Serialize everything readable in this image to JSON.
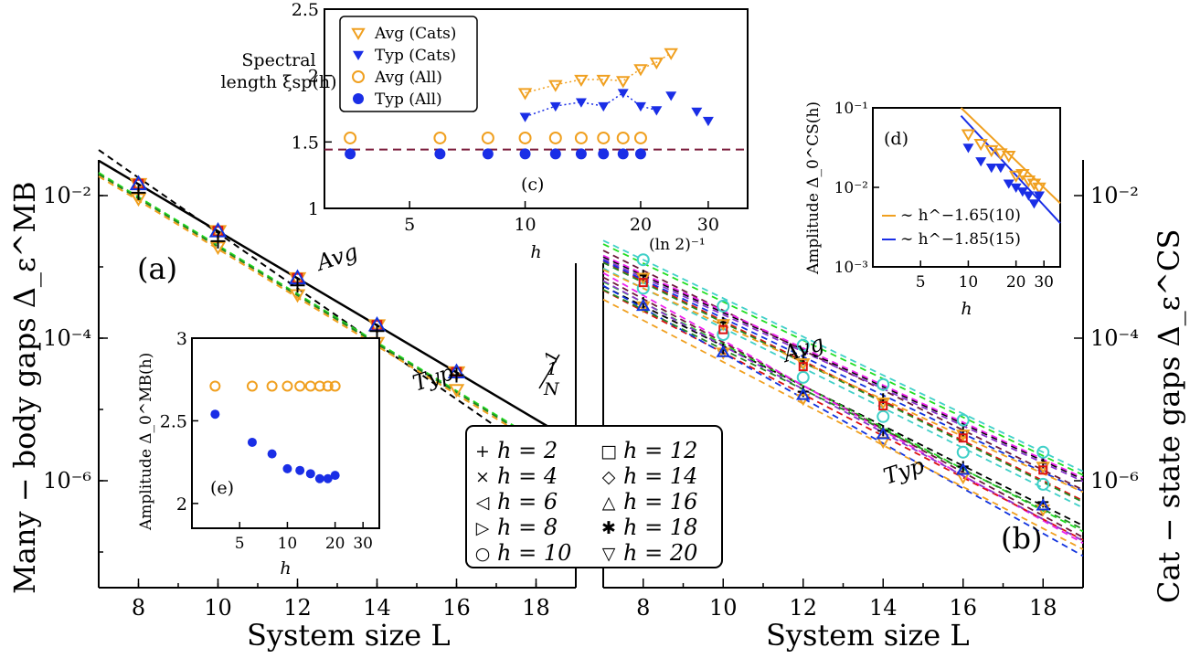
{
  "figure": {
    "label_a": "(a)",
    "label_b": "(b)",
    "label_c": "(c)",
    "label_d": "(d)",
    "label_e": "(e)",
    "avg_label": "Avg",
    "typ_label": "Typ",
    "sqrt_label_num": "1",
    "sqrt_label_den": "N",
    "ln2_label": "(ln 2)⁻¹",
    "fit_d_avg": "∼ h^−1.65(10)",
    "fit_d_typ": "∼ h^−1.85(15)"
  },
  "colors": {
    "h2": "#000000",
    "h4": "#22dd22",
    "h6": "#6b1a3a",
    "h8": "#ee22ee",
    "h10": "#40d0c8",
    "h12": "#dd1111",
    "h14": "#8833cc",
    "h16": "#1133dd",
    "h18": "#228822",
    "h20": "#f0a020",
    "orange": "#f0a020",
    "blue": "#1a2ee6",
    "maroon": "#7a1a3a"
  },
  "legend_main": [
    {
      "label": "h = 2",
      "key": "h2",
      "marker": "+"
    },
    {
      "label": "h = 4",
      "key": "h4",
      "marker": "×"
    },
    {
      "label": "h = 6",
      "key": "h6",
      "marker": "◁"
    },
    {
      "label": "h = 8",
      "key": "h8",
      "marker": "▷"
    },
    {
      "label": "h = 10",
      "key": "h10",
      "marker": "○"
    },
    {
      "label": "h = 12",
      "key": "h12",
      "marker": "□"
    },
    {
      "label": "h = 14",
      "key": "h14",
      "marker": "◇"
    },
    {
      "label": "h = 16",
      "key": "h16",
      "marker": "△"
    },
    {
      "label": "h = 18",
      "key": "h18",
      "marker": "✱"
    },
    {
      "label": "h = 20",
      "key": "h20",
      "marker": "▽"
    }
  ],
  "legend_c": [
    {
      "label": "Avg (Cats)",
      "marker": "▽",
      "color": "orange"
    },
    {
      "label": "Typ (Cats)",
      "marker": "▼",
      "color": "blue"
    },
    {
      "label": "Avg (All)",
      "marker": "○",
      "color": "orange"
    },
    {
      "label": "Typ (All)",
      "marker": "●",
      "color": "blue"
    }
  ],
  "chart_data": [
    {
      "id": "a",
      "type": "scatter",
      "title": "(a)",
      "xlabel": "System size L",
      "ylabel": "Many − body gaps Δ_ε^MB",
      "xlim": [
        7,
        19
      ],
      "ylim_log10": [
        -7.5,
        -1.5
      ],
      "yscale": "log",
      "xticks": [
        8,
        10,
        12,
        14,
        16,
        18
      ],
      "yticks_log10": [
        -6,
        -4,
        -2
      ],
      "yticklabels": [
        "10⁻⁶",
        "10⁻⁴",
        "10⁻²"
      ],
      "x": [
        8,
        10,
        12,
        14,
        16
      ],
      "avg_log10": [
        -1.84,
        -2.5,
        -3.16,
        -3.82,
        -4.48
      ],
      "typ_log10": [
        -2.04,
        -2.72,
        -3.39,
        -4.06,
        -4.72
      ],
      "typ_h2_log10": [
        -1.96,
        -2.64,
        -3.26,
        -3.9,
        -4.52
      ],
      "guide_1_over_NH": {
        "slope_log10_per_L": -0.301,
        "value_log10_at_L19": -5.2
      }
    },
    {
      "id": "b",
      "type": "scatter",
      "title": "(b)",
      "xlabel": "System size L",
      "ylabel": "Cat − state gaps Δ_ε^CS",
      "xlim": [
        7,
        19
      ],
      "ylim_log10": [
        -7.5,
        -1.5
      ],
      "yscale": "log",
      "xticks": [
        8,
        10,
        12,
        14,
        16,
        18
      ],
      "yticks_log10": [
        -6,
        -4,
        -2
      ],
      "x": [
        8,
        10,
        12,
        14,
        16,
        18
      ],
      "series": [
        {
          "name": "h = 2",
          "avg_log10": [
            -3.12,
            -3.78,
            -4.3,
            -4.85,
            -5.3,
            -5.75
          ],
          "typ_log10": [
            -3.5,
            -4.15,
            -4.75,
            -5.3,
            -5.8,
            -6.3
          ]
        },
        {
          "name": "h = 10",
          "avg_log10": [
            -2.9,
            -3.55,
            -4.1,
            -4.65,
            -5.15,
            -5.6
          ],
          "typ_log10": [
            -3.3,
            -3.95,
            -4.55,
            -5.1,
            -5.6,
            -6.05
          ]
        },
        {
          "name": "h = 20",
          "avg_log10": [
            -3.15,
            -3.8,
            -4.35,
            -4.9,
            -5.35,
            -5.8
          ],
          "typ_log10": [
            -3.55,
            -4.2,
            -4.85,
            -5.45,
            -5.95,
            -6.4
          ]
        }
      ]
    },
    {
      "id": "c",
      "type": "scatter",
      "title": "(c)",
      "xlabel": "h",
      "ylabel": "Spectral length ξ_sp(h)",
      "xscale": "log",
      "xlim": [
        3,
        38
      ],
      "ylim": [
        1,
        2.5
      ],
      "xticks": [
        5,
        10,
        20,
        30
      ],
      "yticks": [
        1,
        1.5,
        2,
        2.5
      ],
      "hline": 1.443,
      "series": [
        {
          "name": "Avg (Cats)",
          "h": [
            10,
            12,
            14,
            16,
            18,
            20,
            22,
            24
          ],
          "values": [
            1.87,
            1.93,
            1.97,
            1.97,
            1.96,
            2.05,
            2.1,
            2.17
          ]
        },
        {
          "name": "Typ (Cats)",
          "h": [
            10,
            12,
            14,
            16,
            18,
            20,
            22,
            24,
            28,
            30
          ],
          "values": [
            1.69,
            1.77,
            1.8,
            1.77,
            1.87,
            1.77,
            1.74,
            1.85,
            1.73,
            1.66
          ]
        },
        {
          "name": "Avg (All)",
          "h": [
            3.5,
            6,
            8,
            10,
            12,
            14,
            16,
            18,
            20
          ],
          "values": [
            1.53,
            1.53,
            1.53,
            1.53,
            1.53,
            1.53,
            1.53,
            1.53,
            1.53
          ]
        },
        {
          "name": "Typ (All)",
          "h": [
            3.5,
            6,
            8,
            10,
            12,
            14,
            16,
            18,
            20
          ],
          "values": [
            1.41,
            1.41,
            1.41,
            1.41,
            1.41,
            1.41,
            1.41,
            1.41,
            1.41
          ]
        }
      ]
    },
    {
      "id": "d",
      "type": "scatter",
      "title": "(d)",
      "xlabel": "h",
      "ylabel": "Amplitude Δ_0^CS(h)",
      "xscale": "log",
      "yscale": "log",
      "xlim": [
        2.5,
        38
      ],
      "ylim_log10": [
        -3,
        -1
      ],
      "xticks": [
        5,
        10,
        20,
        30
      ],
      "yticklabels": [
        "10⁻³",
        "10⁻²",
        "10⁻¹"
      ],
      "series": [
        {
          "name": "Avg",
          "h": [
            10,
            12,
            14,
            16,
            18,
            20,
            22,
            24,
            26,
            28
          ],
          "values_log10": [
            -1.33,
            -1.45,
            -1.53,
            -1.57,
            -1.6,
            -1.85,
            -1.83,
            -1.91,
            -1.95,
            -2.0
          ]
        },
        {
          "name": "Typ",
          "h": [
            10,
            12,
            14,
            16,
            18,
            20,
            22,
            24,
            26,
            28
          ],
          "values_log10": [
            -1.5,
            -1.67,
            -1.75,
            -1.75,
            -1.95,
            -2.0,
            -2.05,
            -2.1,
            -2.2,
            -2.1
          ]
        }
      ]
    },
    {
      "id": "e",
      "type": "scatter",
      "title": "(e)",
      "xlabel": "h",
      "ylabel": "Amplitude Δ_0^MB(h)",
      "xscale": "log",
      "xlim": [
        2.5,
        38
      ],
      "ylim": [
        1.85,
        3.0
      ],
      "xticks": [
        5,
        10,
        20,
        30
      ],
      "yticks": [
        2,
        2.5,
        3
      ],
      "series": [
        {
          "name": "Avg",
          "h": [
            3.5,
            6,
            8,
            10,
            12,
            14,
            16,
            18,
            20
          ],
          "values": [
            2.71,
            2.71,
            2.71,
            2.71,
            2.71,
            2.71,
            2.71,
            2.71,
            2.71
          ]
        },
        {
          "name": "Typ",
          "h": [
            3.5,
            6,
            8,
            10,
            12,
            14,
            16,
            18,
            20
          ],
          "values": [
            2.54,
            2.37,
            2.3,
            2.21,
            2.2,
            2.18,
            2.15,
            2.15,
            2.17
          ]
        }
      ]
    }
  ]
}
